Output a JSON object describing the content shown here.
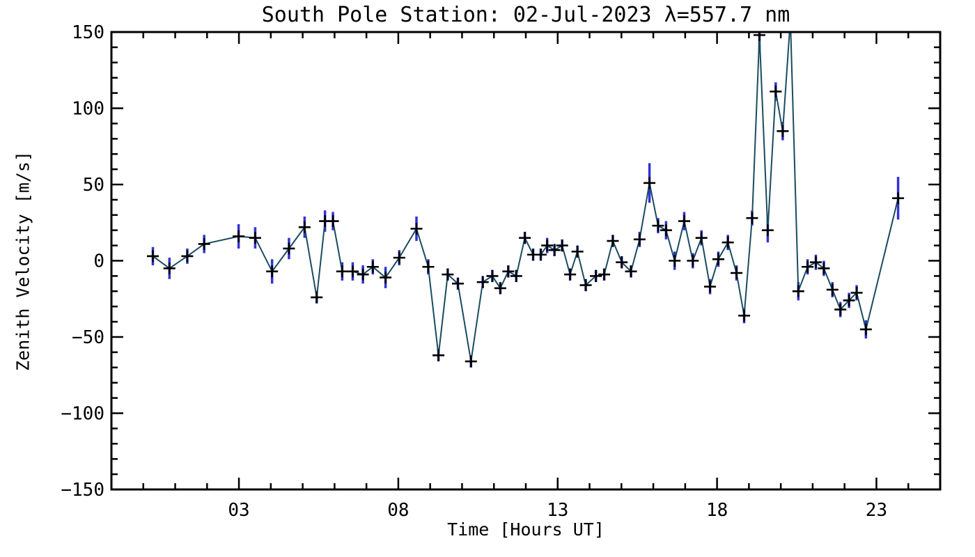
{
  "figure": {
    "background": "#ffffff",
    "frame_color": "#000000"
  },
  "chart_data": {
    "type": "line",
    "title": "South Pole Station: 02-Jul-2023 λ=557.7 nm",
    "xlabel": "Time [Hours UT]",
    "ylabel": "Zenith Velocity [m/s]",
    "xlim": [
      -1,
      25
    ],
    "ylim": [
      -150,
      150
    ],
    "grid": false,
    "legend": null,
    "x_major_ticks": [
      {
        "value": 3,
        "label": "03"
      },
      {
        "value": 8,
        "label": "08"
      },
      {
        "value": 13,
        "label": "13"
      },
      {
        "value": 18,
        "label": "18"
      },
      {
        "value": 23,
        "label": "23"
      }
    ],
    "x_minor_step": 1,
    "y_major_ticks": [
      {
        "value": 150,
        "label": "150"
      },
      {
        "value": 100,
        "label": "100"
      },
      {
        "value": 50,
        "label": "50"
      },
      {
        "value": 0,
        "label": "0"
      },
      {
        "value": -50,
        "label": "−50"
      },
      {
        "value": -100,
        "label": "−100"
      },
      {
        "value": -150,
        "label": "−150"
      }
    ],
    "y_minor_step": 10,
    "series": [
      {
        "name": "zenith velocity",
        "line_color": "#194b5f",
        "marker": "plus",
        "marker_color": "#000000",
        "error_bar_color": "#3232d8",
        "points": [
          {
            "t": 0.3,
            "v": 3,
            "e": 6
          },
          {
            "t": 0.82,
            "v": -5,
            "e": 7
          },
          {
            "t": 1.38,
            "v": 3,
            "e": 5
          },
          {
            "t": 1.91,
            "v": 11,
            "e": 6
          },
          {
            "t": 2.99,
            "v": 16,
            "e": 8
          },
          {
            "t": 3.51,
            "v": 15,
            "e": 7
          },
          {
            "t": 4.04,
            "v": -7,
            "e": 8
          },
          {
            "t": 4.57,
            "v": 8,
            "e": 7
          },
          {
            "t": 5.06,
            "v": 22,
            "e": 7
          },
          {
            "t": 5.44,
            "v": -24,
            "e": 4
          },
          {
            "t": 5.7,
            "v": 26,
            "e": 7
          },
          {
            "t": 5.95,
            "v": 26,
            "e": 6
          },
          {
            "t": 6.24,
            "v": -7,
            "e": 6
          },
          {
            "t": 6.57,
            "v": -7,
            "e": 6
          },
          {
            "t": 6.89,
            "v": -9,
            "e": 6
          },
          {
            "t": 7.2,
            "v": -4,
            "e": 5
          },
          {
            "t": 7.6,
            "v": -11,
            "e": 7
          },
          {
            "t": 8.03,
            "v": 2,
            "e": 5
          },
          {
            "t": 8.57,
            "v": 21,
            "e": 8
          },
          {
            "t": 8.94,
            "v": -4,
            "e": 5
          },
          {
            "t": 9.26,
            "v": -62,
            "e": 4
          },
          {
            "t": 9.55,
            "v": -9,
            "e": 4
          },
          {
            "t": 9.87,
            "v": -15,
            "e": 4
          },
          {
            "t": 10.28,
            "v": -66,
            "e": 4
          },
          {
            "t": 10.65,
            "v": -14,
            "e": 4
          },
          {
            "t": 10.95,
            "v": -10,
            "e": 4
          },
          {
            "t": 11.2,
            "v": -18,
            "e": 4
          },
          {
            "t": 11.45,
            "v": -7,
            "e": 4
          },
          {
            "t": 11.7,
            "v": -10,
            "e": 4
          },
          {
            "t": 11.97,
            "v": 15,
            "e": 4
          },
          {
            "t": 12.23,
            "v": 4,
            "e": 4
          },
          {
            "t": 12.47,
            "v": 4,
            "e": 4
          },
          {
            "t": 12.67,
            "v": 10,
            "e": 5
          },
          {
            "t": 12.9,
            "v": 7,
            "e": 4
          },
          {
            "t": 13.14,
            "v": 10,
            "e": 4
          },
          {
            "t": 13.39,
            "v": -9,
            "e": 4
          },
          {
            "t": 13.62,
            "v": 6,
            "e": 4
          },
          {
            "t": 13.88,
            "v": -16,
            "e": 4
          },
          {
            "t": 14.2,
            "v": -10,
            "e": 4
          },
          {
            "t": 14.46,
            "v": -9,
            "e": 4
          },
          {
            "t": 14.73,
            "v": 13,
            "e": 4
          },
          {
            "t": 15.01,
            "v": -1,
            "e": 4
          },
          {
            "t": 15.3,
            "v": -7,
            "e": 4
          },
          {
            "t": 15.57,
            "v": 14,
            "e": 5
          },
          {
            "t": 15.88,
            "v": 51,
            "e": 13
          },
          {
            "t": 16.15,
            "v": 23,
            "e": 5
          },
          {
            "t": 16.4,
            "v": 20,
            "e": 6
          },
          {
            "t": 16.67,
            "v": 0,
            "e": 6
          },
          {
            "t": 16.97,
            "v": 26,
            "e": 6
          },
          {
            "t": 17.24,
            "v": 0,
            "e": 5
          },
          {
            "t": 17.51,
            "v": 15,
            "e": 5
          },
          {
            "t": 17.78,
            "v": -17,
            "e": 5
          },
          {
            "t": 18.04,
            "v": 1,
            "e": 5
          },
          {
            "t": 18.34,
            "v": 12,
            "e": 5
          },
          {
            "t": 18.61,
            "v": -8,
            "e": 5
          },
          {
            "t": 18.85,
            "v": -36,
            "e": 5
          },
          {
            "t": 19.1,
            "v": 28,
            "e": 5
          },
          {
            "t": 19.33,
            "v": 148,
            "e": 10
          },
          {
            "t": 19.59,
            "v": 20,
            "e": 8
          },
          {
            "t": 19.84,
            "v": 111,
            "e": 6
          },
          {
            "t": 20.06,
            "v": 85,
            "e": 6
          },
          {
            "t": 20.3,
            "v": 158,
            "e": 6
          },
          {
            "t": 20.55,
            "v": -20,
            "e": 6
          },
          {
            "t": 20.84,
            "v": -4,
            "e": 5
          },
          {
            "t": 21.1,
            "v": -1,
            "e": 5
          },
          {
            "t": 21.35,
            "v": -5,
            "e": 5
          },
          {
            "t": 21.62,
            "v": -19,
            "e": 5
          },
          {
            "t": 21.87,
            "v": -32,
            "e": 5
          },
          {
            "t": 22.14,
            "v": -26,
            "e": 5
          },
          {
            "t": 22.38,
            "v": -21,
            "e": 5
          },
          {
            "t": 22.67,
            "v": -45,
            "e": 6
          },
          {
            "t": 23.68,
            "v": 41,
            "e": 14
          }
        ]
      }
    ]
  }
}
